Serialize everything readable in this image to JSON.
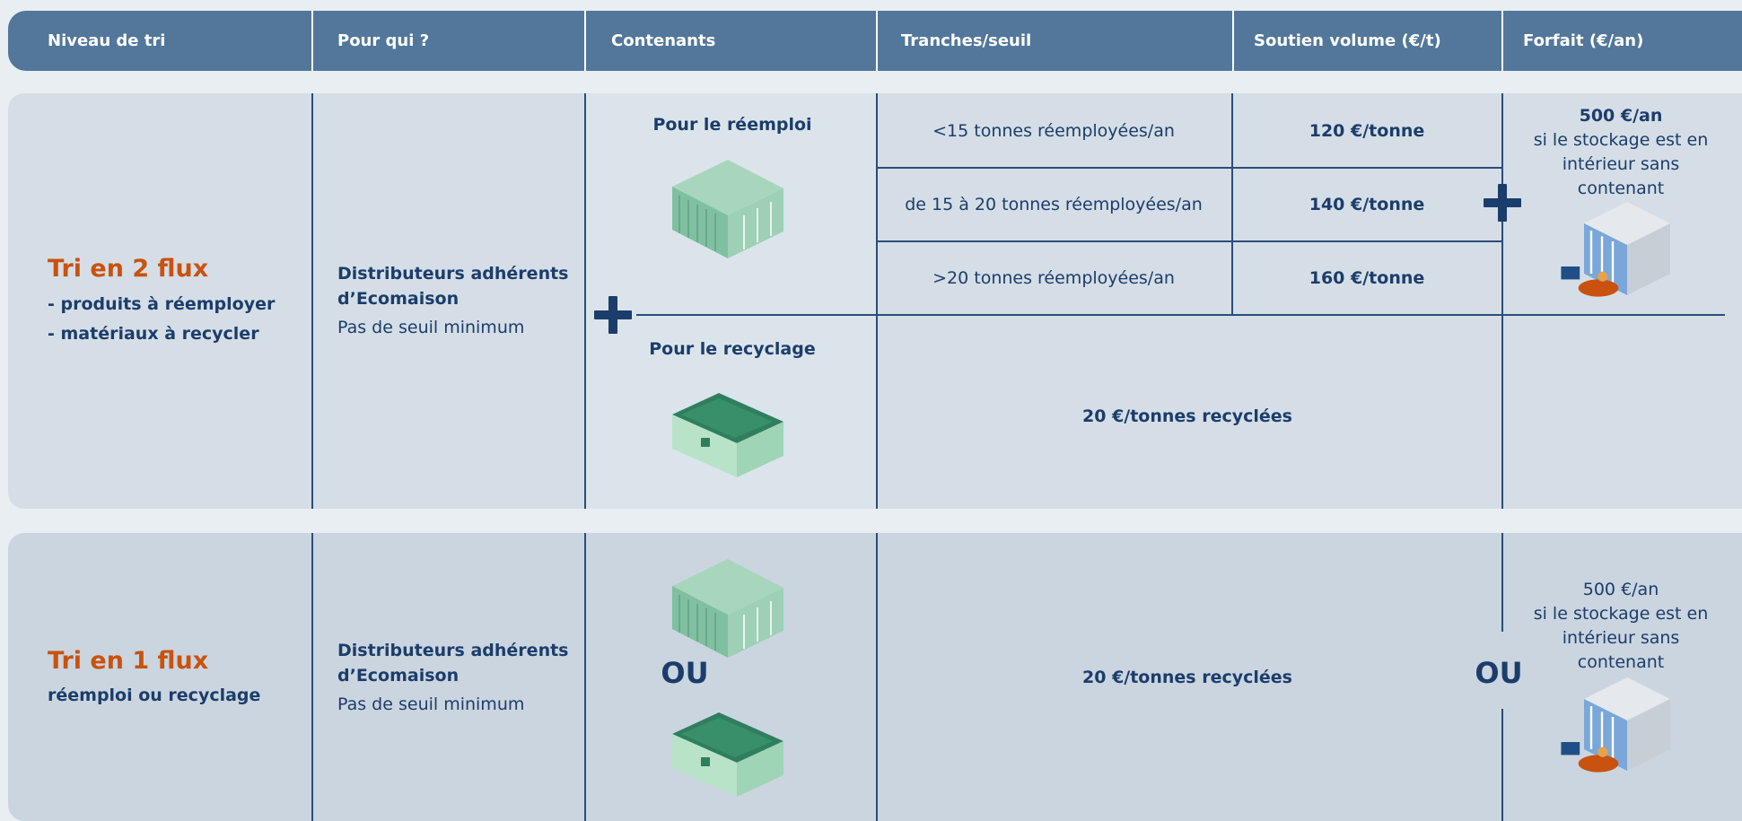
{
  "header": {
    "columns": [
      "Niveau de tri",
      "Pour qui ?",
      "Contenants",
      "Tranches/seuil",
      "Soutien volume (€/t)",
      "Forfait (€/an)"
    ]
  },
  "rows": [
    {
      "title": "Tri en 2 flux",
      "lines": [
        "- produits à réemployer",
        "- matériaux à recycler"
      ],
      "who": "Distributeurs adhérents d’Ecomaison",
      "note": "Pas de seuil minimum",
      "reuse_label": "Pour le réemploi",
      "recycle_label": "Pour le recyclage",
      "tranches": [
        {
          "threshold": "<15 tonnes réemployées/an",
          "support": "120 €/tonne"
        },
        {
          "threshold": "de 15 à 20 tonnes réemployées/an",
          "support": "140 €/tonne"
        },
        {
          "threshold": ">20 tonnes réemployées/an",
          "support": "160 €/tonne"
        }
      ],
      "recycling_support": "20 €/tonnes recyclées",
      "flat_amount": "500 €/an",
      "flat_condition": "si le stockage est en intérieur sans contenant"
    },
    {
      "title": "Tri en 1 flux",
      "subtitle": "réemploi ou recyclage",
      "who": "Distributeurs adhérents d’Ecomaison",
      "note": "Pas de seuil minimum",
      "or_label": "OU",
      "recycling_support": "20 €/tonnes recyclées",
      "flat_amount": "500 €/an",
      "flat_condition": "si le stockage est en intérieur sans contenant"
    }
  ]
}
